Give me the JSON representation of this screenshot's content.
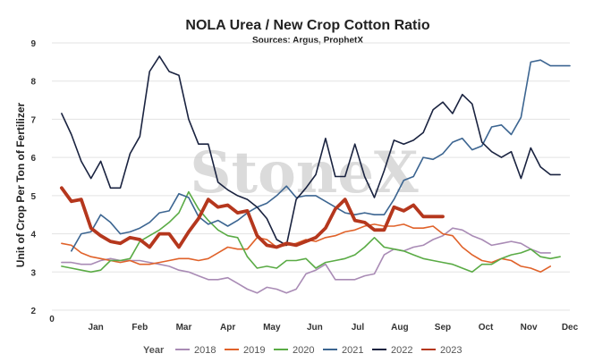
{
  "chart_data": {
    "type": "line",
    "title": "NOLA Urea / New Crop Cotton Ratio",
    "subtitle": "Sources: Argus, ProphetX",
    "watermark": "StoneX",
    "ylabel": "Unit of Crop Per Ton of Fertilizer",
    "xlabel": "",
    "ylim": [
      2,
      9
    ],
    "yticks": [
      "2",
      "3",
      "4",
      "5",
      "6",
      "7",
      "8",
      "9"
    ],
    "xlim": [
      0,
      53
    ],
    "xtick_zero": "0",
    "months": [
      {
        "label": "Jan",
        "week": 4.5
      },
      {
        "label": "Feb",
        "week": 9
      },
      {
        "label": "Mar",
        "week": 13.5
      },
      {
        "label": "Apr",
        "week": 18
      },
      {
        "label": "May",
        "week": 22.5
      },
      {
        "label": "Jun",
        "week": 26.9
      },
      {
        "label": "Jul",
        "week": 31.3
      },
      {
        "label": "Aug",
        "week": 35.6
      },
      {
        "label": "Sep",
        "week": 40
      },
      {
        "label": "Oct",
        "week": 44.4
      },
      {
        "label": "Nov",
        "week": 48.8
      },
      {
        "label": "Dec",
        "week": 53
      }
    ],
    "grid": true,
    "legend": {
      "title": "Year",
      "placement": "bottom"
    },
    "series": [
      {
        "name": "2018",
        "color": "#a98bb5",
        "width": 1.6,
        "x": [
          1,
          2,
          3,
          4,
          5,
          6,
          7,
          8,
          9,
          10,
          11,
          12,
          13,
          14,
          15,
          16,
          17,
          18,
          19,
          20,
          21,
          22,
          23,
          24,
          25,
          26,
          27,
          28,
          29,
          30,
          31,
          32,
          33,
          34,
          35,
          36,
          37,
          38,
          39,
          40,
          41,
          42,
          43,
          44,
          45,
          46,
          47,
          48,
          49,
          50,
          51
        ],
        "y": [
          3.25,
          3.25,
          3.2,
          3.2,
          3.3,
          3.35,
          3.3,
          3.3,
          3.3,
          3.25,
          3.2,
          3.15,
          3.05,
          3.0,
          2.9,
          2.8,
          2.8,
          2.85,
          2.7,
          2.55,
          2.45,
          2.6,
          2.55,
          2.45,
          2.55,
          2.95,
          3.05,
          3.2,
          2.8,
          2.8,
          2.8,
          2.9,
          2.95,
          3.45,
          3.6,
          3.55,
          3.65,
          3.7,
          3.85,
          3.95,
          4.15,
          4.1,
          3.95,
          3.85,
          3.7,
          3.75,
          3.8,
          3.75,
          3.6,
          3.5,
          3.5
        ]
      },
      {
        "name": "2019",
        "color": "#e0622a",
        "width": 1.6,
        "x": [
          1,
          2,
          3,
          4,
          5,
          6,
          7,
          8,
          9,
          10,
          11,
          12,
          13,
          14,
          15,
          16,
          17,
          18,
          19,
          20,
          21,
          22,
          23,
          24,
          25,
          26,
          27,
          28,
          29,
          30,
          31,
          32,
          33,
          34,
          35,
          36,
          37,
          38,
          39,
          40,
          41,
          42,
          43,
          44,
          45,
          46,
          47,
          48,
          49,
          50,
          51
        ],
        "y": [
          3.75,
          3.7,
          3.5,
          3.4,
          3.35,
          3.3,
          3.25,
          3.3,
          3.2,
          3.2,
          3.25,
          3.3,
          3.35,
          3.35,
          3.3,
          3.35,
          3.5,
          3.65,
          3.6,
          3.6,
          3.9,
          3.85,
          3.65,
          3.7,
          3.75,
          3.85,
          3.8,
          3.9,
          3.95,
          4.05,
          4.1,
          4.2,
          4.25,
          4.2,
          4.2,
          4.25,
          4.15,
          4.15,
          4.2,
          4.0,
          3.95,
          3.65,
          3.45,
          3.3,
          3.25,
          3.35,
          3.3,
          3.15,
          3.1,
          3.0,
          3.15
        ]
      },
      {
        "name": "2020",
        "color": "#5aab45",
        "width": 1.6,
        "x": [
          1,
          2,
          3,
          4,
          5,
          6,
          7,
          8,
          9,
          10,
          11,
          12,
          13,
          14,
          15,
          16,
          17,
          18,
          19,
          20,
          21,
          22,
          23,
          24,
          25,
          26,
          27,
          28,
          29,
          30,
          31,
          32,
          33,
          34,
          35,
          36,
          37,
          38,
          39,
          40,
          41,
          42,
          43,
          44,
          45,
          46,
          47,
          48,
          49,
          50,
          51,
          52
        ],
        "y": [
          3.15,
          3.1,
          3.05,
          3.0,
          3.05,
          3.3,
          3.3,
          3.35,
          3.8,
          3.95,
          4.1,
          4.3,
          4.55,
          5.1,
          4.65,
          4.35,
          4.1,
          3.95,
          3.9,
          3.4,
          3.1,
          3.15,
          3.1,
          3.3,
          3.3,
          3.35,
          3.1,
          3.25,
          3.3,
          3.35,
          3.45,
          3.65,
          3.9,
          3.65,
          3.6,
          3.55,
          3.45,
          3.35,
          3.3,
          3.25,
          3.2,
          3.1,
          3.0,
          3.2,
          3.2,
          3.35,
          3.45,
          3.5,
          3.6,
          3.4,
          3.35,
          3.4
        ]
      },
      {
        "name": "2021",
        "color": "#3c6591",
        "width": 1.6,
        "x": [
          2,
          3,
          4,
          5,
          6,
          7,
          8,
          9,
          10,
          11,
          12,
          13,
          14,
          15,
          16,
          17,
          18,
          19,
          20,
          21,
          22,
          23,
          24,
          25,
          26,
          27,
          28,
          29,
          30,
          31,
          32,
          33,
          34,
          35,
          36,
          37,
          38,
          39,
          40,
          41,
          42,
          43,
          44,
          45,
          46,
          47,
          48,
          49,
          50,
          51,
          52,
          53
        ],
        "y": [
          3.55,
          4.0,
          4.05,
          4.5,
          4.3,
          4.0,
          4.05,
          4.15,
          4.3,
          4.55,
          4.6,
          5.05,
          4.95,
          4.45,
          4.25,
          4.35,
          4.2,
          4.35,
          4.55,
          4.7,
          4.8,
          5.0,
          5.25,
          4.95,
          5.0,
          5.0,
          4.85,
          4.7,
          4.55,
          4.5,
          4.55,
          4.5,
          4.5,
          4.9,
          5.4,
          5.5,
          6.0,
          5.95,
          6.1,
          6.4,
          6.5,
          6.2,
          6.3,
          6.8,
          6.85,
          6.6,
          7.05,
          8.5,
          8.55,
          8.4,
          8.4,
          8.4
        ]
      },
      {
        "name": "2022",
        "color": "#1a2340",
        "width": 1.6,
        "x": [
          1,
          2,
          3,
          4,
          5,
          6,
          7,
          8,
          9,
          10,
          11,
          12,
          13,
          14,
          15,
          16,
          17,
          18,
          19,
          20,
          21,
          22,
          23,
          24,
          25,
          26,
          27,
          28,
          29,
          30,
          31,
          32,
          33,
          34,
          35,
          36,
          37,
          38,
          39,
          40,
          41,
          42,
          43,
          44,
          45,
          46,
          47,
          48,
          49,
          50,
          51,
          52
        ],
        "y": [
          7.15,
          6.6,
          5.9,
          5.45,
          5.9,
          5.2,
          5.2,
          6.1,
          6.55,
          8.25,
          8.65,
          8.25,
          8.15,
          7.0,
          6.35,
          6.35,
          5.35,
          5.15,
          5.0,
          4.9,
          4.7,
          4.4,
          3.85,
          3.7,
          4.9,
          5.2,
          5.55,
          6.5,
          5.5,
          5.5,
          6.35,
          5.5,
          4.95,
          5.65,
          6.45,
          6.35,
          6.45,
          6.65,
          7.25,
          7.45,
          7.15,
          7.65,
          7.4,
          6.4,
          6.15,
          6.0,
          6.15,
          5.45,
          6.25,
          5.75,
          5.55,
          5.55
        ]
      },
      {
        "name": "2023",
        "color": "#b5371d",
        "width": 3.8,
        "x": [
          1,
          2,
          3,
          4,
          5,
          6,
          7,
          8,
          9,
          10,
          11,
          12,
          13,
          14,
          15,
          16,
          17,
          18,
          19,
          20,
          21,
          22,
          23,
          24,
          25,
          26,
          27,
          28,
          29,
          30,
          31,
          32,
          33,
          34,
          35,
          36,
          37,
          38,
          39,
          40
        ],
        "y": [
          5.2,
          4.85,
          4.9,
          4.15,
          3.95,
          3.8,
          3.75,
          3.9,
          3.85,
          3.65,
          4.0,
          4.0,
          3.65,
          4.05,
          4.4,
          4.9,
          4.7,
          4.75,
          4.55,
          4.6,
          3.95,
          3.7,
          3.65,
          3.75,
          3.7,
          3.8,
          3.9,
          4.15,
          4.65,
          4.9,
          4.35,
          4.3,
          4.1,
          4.1,
          4.7,
          4.6,
          4.75,
          4.45,
          4.45,
          4.45
        ]
      }
    ]
  }
}
